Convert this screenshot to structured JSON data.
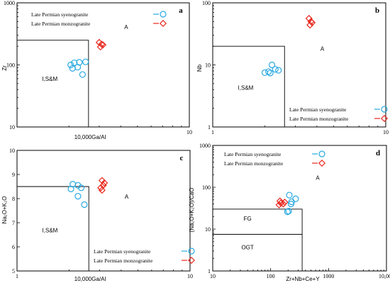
{
  "colors": {
    "syenogranite": "#29a9e0",
    "monzogranite": "#e8281e"
  },
  "chart_data": [
    {
      "type": "scatter",
      "panel": "a",
      "xlabel": "10,000Ga/Al",
      "ylabel": "Zr",
      "xscale": "log",
      "yscale": "log",
      "xlim": [
        1,
        10
      ],
      "ylim": [
        10,
        1000
      ],
      "x_ticks": [
        {
          "value": 1,
          "label": ""
        },
        {
          "value": 10,
          "label": "10"
        }
      ],
      "y_ticks": [
        {
          "value": 10,
          "label": "10"
        },
        {
          "value": 100,
          "label": "100"
        },
        {
          "value": 1000,
          "label": "1000"
        }
      ],
      "regions": [
        {
          "label": "I,S&M",
          "polygon": [
            [
              1,
              250
            ],
            [
              2.6,
              250
            ],
            [
              2.6,
              10
            ]
          ],
          "label_at": [
            1.55,
            55
          ]
        },
        {
          "label": "A",
          "label_at": [
            4.3,
            380
          ]
        }
      ],
      "legend_position": "top-left",
      "series": [
        {
          "name": "Late Permian syenogranite",
          "marker": "circle",
          "color": "#29a9e0",
          "x": [
            2.05,
            2.15,
            2.3,
            2.5,
            2.25,
            2.4,
            2.1
          ],
          "y": [
            100,
            108,
            110,
            112,
            92,
            70,
            88
          ]
        },
        {
          "name": "Late Permian monzogranite",
          "marker": "diamond",
          "color": "#e8281e",
          "x": [
            3.0,
            3.1,
            3.15,
            3.05
          ],
          "y": [
            230,
            215,
            210,
            195
          ]
        }
      ]
    },
    {
      "type": "scatter",
      "panel": "b",
      "xlabel": "",
      "ylabel": "Nb",
      "xscale": "log",
      "yscale": "log",
      "xlim": [
        1,
        10
      ],
      "ylim": [
        1,
        100
      ],
      "x_ticks": [
        {
          "value": 1,
          "label": "1"
        },
        {
          "value": 10,
          "label": "10"
        }
      ],
      "y_ticks": [
        {
          "value": 1,
          "label": "1"
        },
        {
          "value": 10,
          "label": "10"
        },
        {
          "value": 100,
          "label": "100"
        }
      ],
      "regions": [
        {
          "label": "I,S&M",
          "polygon": [
            [
              1,
              20
            ],
            [
              2.6,
              20
            ],
            [
              2.6,
              1
            ]
          ],
          "label_at": [
            1.55,
            4
          ]
        },
        {
          "label": "A",
          "label_at": [
            4.3,
            17
          ]
        }
      ],
      "legend_position": "bottom-right",
      "series": [
        {
          "name": "Late Permian syenogranite",
          "marker": "circle",
          "color": "#29a9e0",
          "x": [
            2.0,
            2.1,
            2.2,
            2.3,
            2.15,
            2.4
          ],
          "y": [
            7.5,
            7.8,
            10,
            8.5,
            7.4,
            8.2
          ]
        },
        {
          "name": "Late Permian monzogranite",
          "marker": "diamond",
          "color": "#e8281e",
          "x": [
            3.6,
            3.7,
            3.75,
            3.65
          ],
          "y": [
            56,
            50,
            48,
            44
          ]
        }
      ]
    },
    {
      "type": "scatter",
      "panel": "c",
      "xlabel": "10,000Ga/Al",
      "ylabel": "Na₂O+K₂O",
      "xscale": "log",
      "yscale": "linear",
      "xlim": [
        1,
        10
      ],
      "ylim": [
        5,
        10
      ],
      "x_ticks": [
        {
          "value": 1,
          "label": "1"
        },
        {
          "value": 10,
          "label": "10"
        }
      ],
      "y_ticks": [
        {
          "value": 5,
          "label": "5"
        },
        {
          "value": 6,
          "label": "6"
        },
        {
          "value": 7,
          "label": "7"
        },
        {
          "value": 8,
          "label": "8"
        },
        {
          "value": 9,
          "label": "9"
        },
        {
          "value": 10,
          "label": "10"
        }
      ],
      "regions": [
        {
          "label": "I,S&M",
          "polygon": [
            [
              1,
              8.5
            ],
            [
              2.6,
              8.5
            ],
            [
              2.6,
              5
            ]
          ],
          "label_at": [
            1.55,
            6.6
          ]
        },
        {
          "label": "A",
          "label_at": [
            4.3,
            8.0
          ]
        }
      ],
      "legend_position": "bottom-right",
      "series": [
        {
          "name": "Late Permian syenogranite",
          "marker": "circle",
          "color": "#29a9e0",
          "x": [
            2.1,
            2.25,
            2.35,
            2.05,
            2.25,
            2.45
          ],
          "y": [
            8.6,
            8.55,
            8.45,
            8.4,
            8.1,
            7.75
          ]
        },
        {
          "name": "Late Permian monzogranite",
          "marker": "diamond",
          "color": "#e8281e",
          "x": [
            3.1,
            3.2,
            3.15,
            3.05,
            3.1
          ],
          "y": [
            8.75,
            8.65,
            8.55,
            8.45,
            8.35
          ]
        }
      ]
    },
    {
      "type": "scatter",
      "panel": "d",
      "xlabel": "Zr+Nb+Ce+Y",
      "ylabel": "(Na₂O+K₂O)/CaO",
      "xscale": "log",
      "yscale": "log",
      "xlim": [
        10,
        10000
      ],
      "ylim": [
        1,
        1000
      ],
      "x_ticks": [
        {
          "value": 10,
          "label": "10"
        },
        {
          "value": 100,
          "label": "100"
        },
        {
          "value": 1000,
          "label": "1000"
        },
        {
          "value": 10000,
          "label": "10,000"
        }
      ],
      "y_ticks": [
        {
          "value": 1,
          "label": "1"
        },
        {
          "value": 10,
          "label": "10"
        },
        {
          "value": 100,
          "label": "100"
        },
        {
          "value": 1000,
          "label": "1000"
        }
      ],
      "regions": [
        {
          "label": "FG",
          "polygon": [
            [
              10,
              30
            ],
            [
              350,
              30
            ],
            [
              350,
              1
            ]
          ],
          "label_at": [
            40,
            16
          ]
        },
        {
          "label": "OGT",
          "polygon": [
            [
              10,
              7.5
            ],
            [
              350,
              7.5
            ]
          ],
          "label_at": [
            40,
            3.3
          ]
        },
        {
          "label": "A",
          "label_at": [
            650,
            150
          ]
        }
      ],
      "legend_position": "top-left",
      "series": [
        {
          "name": "Late Permian syenogranite",
          "marker": "circle",
          "color": "#29a9e0",
          "x": [
            210,
            230,
            270,
            225,
            195,
            205
          ],
          "y": [
            65,
            45,
            53,
            40,
            26,
            27
          ]
        },
        {
          "name": "Late Permian monzogranite",
          "marker": "diamond",
          "color": "#e8281e",
          "x": [
            145,
            150,
            175,
            140,
            165
          ],
          "y": [
            47,
            42,
            44,
            38,
            40
          ]
        }
      ]
    }
  ]
}
